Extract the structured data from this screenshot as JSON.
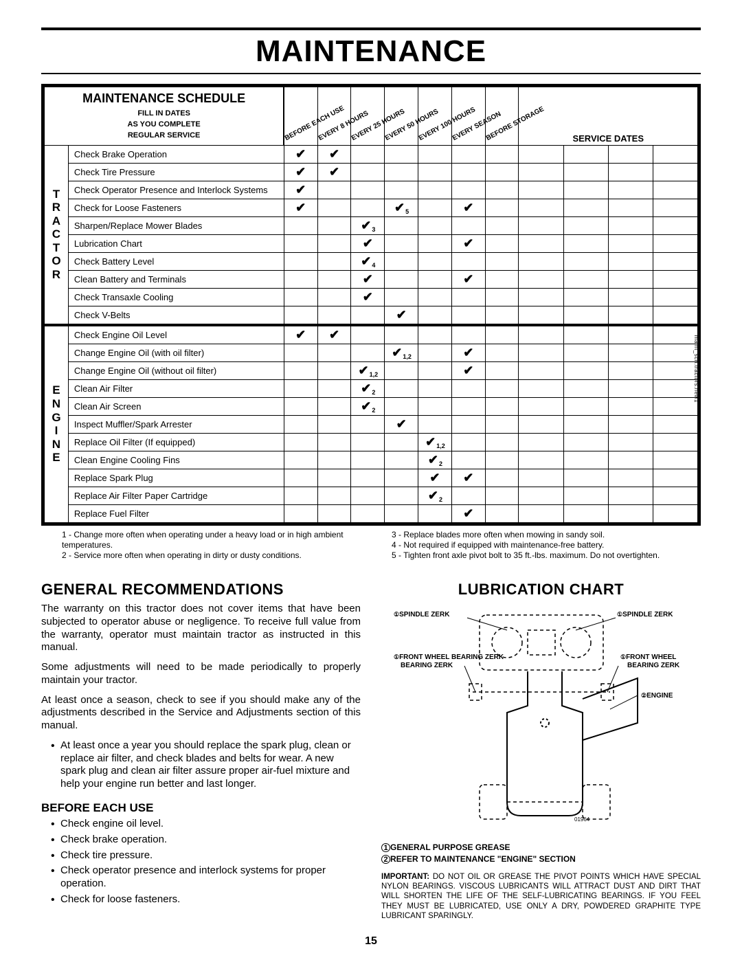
{
  "page_title": "MAINTENANCE",
  "page_number": "15",
  "schedule": {
    "title": "MAINTENANCE SCHEDULE",
    "subtitle": "FILL IN DATES\nAS YOU COMPLETE\nREGULAR SERVICE",
    "columns": [
      "BEFORE EACH USE",
      "EVERY 8 HOURS",
      "EVERY 25 HOURS",
      "EVERY 50 HOURS",
      "EVERY 100 HOURS",
      "EVERY SEASON",
      "BEFORE STORAGE"
    ],
    "service_dates_label": "SERVICE DATES",
    "groups": [
      {
        "label": "TRACTOR",
        "rows": [
          {
            "task": "Check Brake Operation",
            "marks": [
              1,
              1,
              0,
              0,
              0,
              0,
              0
            ]
          },
          {
            "task": "Check Tire Pressure",
            "marks": [
              1,
              1,
              0,
              0,
              0,
              0,
              0
            ]
          },
          {
            "task": "Check Operator Presence and Interlock Systems",
            "marks": [
              1,
              0,
              0,
              0,
              0,
              0,
              0
            ]
          },
          {
            "task": "Check for Loose Fasteners",
            "marks": [
              1,
              0,
              0,
              "✔5",
              0,
              1,
              0
            ]
          },
          {
            "task": "Sharpen/Replace Mower Blades",
            "marks": [
              0,
              0,
              "✔3",
              0,
              0,
              0,
              0
            ]
          },
          {
            "task": "Lubrication Chart",
            "marks": [
              0,
              0,
              1,
              0,
              0,
              1,
              0
            ]
          },
          {
            "task": "Check Battery Level",
            "marks": [
              0,
              0,
              "✔4",
              0,
              0,
              0,
              0
            ]
          },
          {
            "task": "Clean Battery and Terminals",
            "marks": [
              0,
              0,
              1,
              0,
              0,
              1,
              0
            ]
          },
          {
            "task": "Check Transaxle Cooling",
            "marks": [
              0,
              0,
              1,
              0,
              0,
              0,
              0
            ]
          },
          {
            "task": "Check V-Belts",
            "marks": [
              0,
              0,
              0,
              1,
              0,
              0,
              0
            ]
          }
        ]
      },
      {
        "label": "ENGINE",
        "rows": [
          {
            "task": "Check Engine Oil Level",
            "marks": [
              1,
              1,
              0,
              0,
              0,
              0,
              0
            ]
          },
          {
            "task": "Change Engine Oil (with oil filter)",
            "marks": [
              0,
              0,
              0,
              "✔1,2",
              0,
              1,
              0
            ]
          },
          {
            "task": "Change Engine Oil (without oil filter)",
            "marks": [
              0,
              0,
              "✔1,2",
              0,
              0,
              1,
              0
            ]
          },
          {
            "task": "Clean Air Filter",
            "marks": [
              0,
              0,
              "✔2",
              0,
              0,
              0,
              0
            ]
          },
          {
            "task": "Clean Air Screen",
            "marks": [
              0,
              0,
              "✔2",
              0,
              0,
              0,
              0
            ]
          },
          {
            "task": "Inspect Muffler/Spark Arrester",
            "marks": [
              0,
              0,
              0,
              1,
              0,
              0,
              0
            ]
          },
          {
            "task": "Replace Oil Filter (If equipped)",
            "marks": [
              0,
              0,
              0,
              0,
              "✔1,2",
              0,
              0
            ]
          },
          {
            "task": "Clean Engine Cooling Fins",
            "marks": [
              0,
              0,
              0,
              0,
              "✔2",
              0,
              0
            ]
          },
          {
            "task": "Replace Spark Plug",
            "marks": [
              0,
              0,
              0,
              0,
              1,
              1,
              0
            ]
          },
          {
            "task": "Replace Air Filter Paper Cartridge",
            "marks": [
              0,
              0,
              0,
              0,
              "✔2",
              0,
              0
            ]
          },
          {
            "task": "Replace Fuel Filter",
            "marks": [
              0,
              0,
              0,
              0,
              0,
              1,
              0
            ]
          }
        ]
      }
    ],
    "footnotes_left": "1 - Change more often when operating under a heavy load or in high ambient temperatures.\n2 - Service more often when operating in dirty or dusty conditions.",
    "footnotes_right": "3 - Replace blades more often when mowing in sandy soil.\n4 - Not required if equipped with maintenance-free battery.\n5 - Tighten front axle pivot bolt to 35 ft.-lbs. maximum. Do not overtighten.",
    "side_text": "maint_sch.tractors.new1"
  },
  "left_col": {
    "h2": "GENERAL RECOMMENDATIONS",
    "p1": "The warranty on this tractor does not cover items that have been subjected to operator abuse or negligence. To receive full value from the warranty, operator must maintain tractor as instructed in this manual.",
    "p2": "Some adjustments will need to be made periodically to properly maintain your tractor.",
    "p3": "At least once a season, check to see if you should make any of the adjustments described in the Service and Adjustments section of this manual.",
    "bullet_year": "At least once a year you should replace the spark plug, clean or replace air filter, and check blades and belts for wear.  A new spark plug and clean air filter assure proper air-fuel mixture and help your engine run better and last longer.",
    "h3": "BEFORE EACH USE",
    "before_list": [
      "Check engine oil level.",
      "Check brake operation.",
      "Check tire pressure.",
      "Check operator presence and interlock systems for proper operation.",
      "Check for loose fasteners."
    ]
  },
  "right_col": {
    "h2": "LUBRICATION CHART",
    "labels": {
      "spindle_l": "SPINDLE ZERK",
      "spindle_r": "SPINDLE ZERK",
      "wheel_l": "FRONT WHEEL BEARING ZERK",
      "wheel_r": "FRONT WHEEL BEARING ZERK",
      "engine": "ENGINE",
      "fig": "01964"
    },
    "legend1": "GENERAL PURPOSE GREASE",
    "legend2": "REFER TO MAINTENANCE  \"ENGINE\" SECTION",
    "important": "IMPORTANT:  DO NOT OIL OR GREASE THE PIVOT POINTS WHICH HAVE SPECIAL NYLON BEARINGS.  VISCOUS LUBRICANTS WILL ATTRACT DUST AND DIRT THAT WILL SHORTEN THE LIFE OF THE SELF-LUBRICATING BEARINGS.  IF YOU FEEL THEY MUST BE LUBRICATED, USE ONLY A DRY, POWDERED GRAPHITE TYPE LUBRICANT SPARINGLY."
  }
}
